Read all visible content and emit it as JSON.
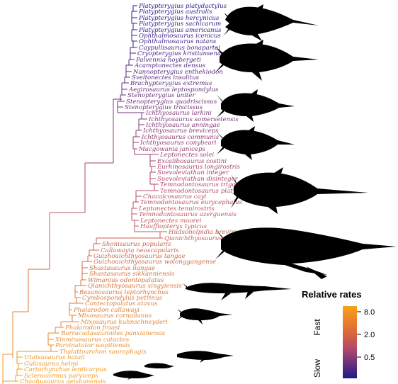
{
  "legend": {
    "title": "Relative rates",
    "fast_label": "Fast",
    "slow_label": "Slow",
    "ticks": [
      "8.0",
      "2.0",
      "0.5"
    ],
    "colors": {
      "fast": "#f7a21a",
      "mid": "#b0476a",
      "slow": "#1f1a8c"
    }
  },
  "taxa": [
    "Platypterygius platydactylus",
    "Platypterygius australis",
    "Platypterygius hercynicus",
    "Platypterygius sachicarum",
    "Platypterygius americanus",
    "Ophthalmosaurus icenicus",
    "Ophthalmosaurus natans",
    "Caypullisaurus bonapartei",
    "Cryopterygius kristiansenae",
    "Palvennia hoybergeti",
    "Acamptonectes densus",
    "Nannopterygius enthekiodon",
    "Sveltonectes insolitus",
    "Brachypterygius extremus",
    "Aegirosaurus leptospondylus",
    "Stenopterygius uniter",
    "Stenopterygius quadriscissus",
    "Stenopterygius triscissus",
    "Ichthyosaurus larkini",
    "Ichthyosaurus somersetensis",
    "Ichthyosaurus anningae",
    "Ichthyosaurus breviceps",
    "Ichthyosaurus communis",
    "Ichthyosaurus conybeari",
    "Macgowania janiceps",
    "Leptonectes solei",
    "Excalibosaurus costini",
    "Eurhinosaurus longirostris",
    "Suevoleviathan integer",
    "Suevoleviathan disinteger",
    "Temnodontosaurus trigonodon",
    "Temnodontosaurus platyodon",
    "Chacaicosaurus cayi",
    "Temnodontosaurus eurycephalus",
    "Leptonectes tenuirostris",
    "Temnodontosaurus azerguensis",
    "Leptonectes moorei",
    "Hauffiopteryx typicus",
    "Hudsonelpidia brevirostris",
    "Qianichthyosaurus zhoui",
    "Shonisaurus popularis",
    "Callawayia neoscapularis",
    "Guizhouichthyosaurus tangae",
    "Guizhouichthyosaurus wolonggangense",
    "Shastasaurus liangae",
    "Shastasaurus sikkanniensis",
    "Wimanius odontopalatus",
    "Qianichthyosaurus xingyiensis",
    "Besanosaurus leptorhynchus",
    "Cymbospondylus petrinus",
    "Contectopalatus atavus",
    "Phalarodon callawayi",
    "Mixosaurus cornalianus",
    "Mixosaurus kuhnschneyderi",
    "Phalarodon fraasi",
    "Barracudasauroides panxianensis",
    "Xinminosaurus catactes",
    "Parvinatator wapitiensis",
    "Thalattoarchon saurophagis",
    "Utatsusaurus hataii",
    "Gulosaurus helmi",
    "Cartorhynchus lenticarpus",
    "Sclerocormus parviceps",
    "Chaohusaurus geishanensis",
    "Hupehsuchus nanchangensis"
  ]
}
